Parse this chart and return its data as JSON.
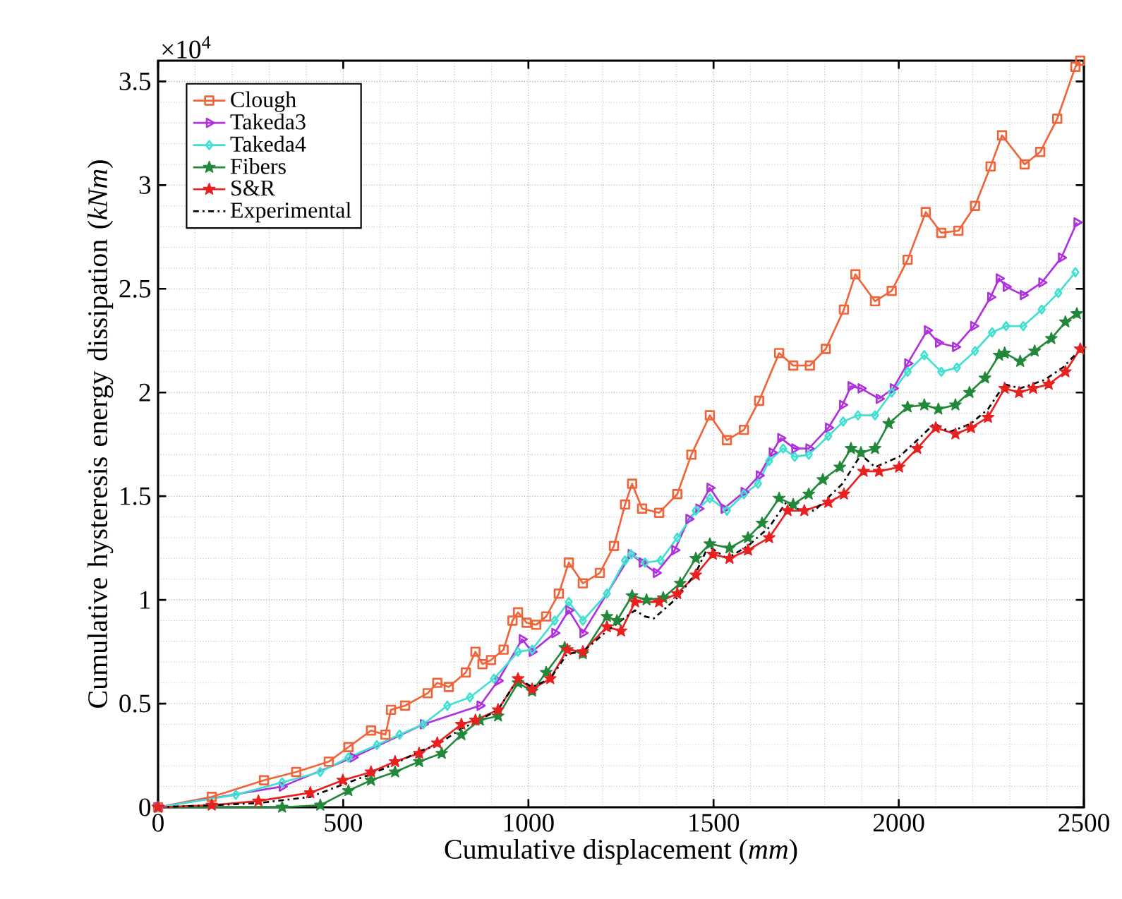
{
  "chart_data": {
    "type": "line",
    "xlabel": "Cumulative displacement (*mm*)",
    "ylabel": "Cumulative hysteresis energy dissipation (*kNm*)",
    "annotations": [
      "×10$^{4}$"
    ],
    "xlim": [
      0,
      2500
    ],
    "ylim": [
      0,
      3.6
    ],
    "xticks": [
      0,
      500,
      1000,
      1500,
      2000,
      2500
    ],
    "yticks": [
      0,
      0.5,
      1,
      1.5,
      2,
      2.5,
      3,
      3.5
    ],
    "grid": true,
    "legend": "top left",
    "series": [
      {
        "name": "Clough",
        "color": "#f0643a",
        "marker": "square",
        "line_style": "solid",
        "x": [
          0,
          145,
          286,
          373,
          461,
          514,
          575,
          614,
          629,
          667,
          728,
          754,
          785,
          831,
          857,
          876,
          899,
          933,
          957,
          972,
          995,
          1021,
          1048,
          1082,
          1109,
          1147,
          1193,
          1231,
          1261,
          1280,
          1307,
          1353,
          1402,
          1440,
          1490,
          1536,
          1582,
          1623,
          1677,
          1715,
          1760,
          1803,
          1852,
          1883,
          1936,
          1981,
          2024,
          2073,
          2115,
          2161,
          2206,
          2248,
          2279,
          2340,
          2382,
          2428,
          2477,
          2490
        ],
        "values": [
          0,
          0.05,
          0.13,
          0.17,
          0.22,
          0.29,
          0.37,
          0.35,
          0.47,
          0.49,
          0.55,
          0.6,
          0.58,
          0.65,
          0.75,
          0.69,
          0.71,
          0.76,
          0.9,
          0.94,
          0.89,
          0.88,
          0.92,
          1.03,
          1.18,
          1.08,
          1.13,
          1.26,
          1.46,
          1.56,
          1.44,
          1.42,
          1.51,
          1.7,
          1.89,
          1.77,
          1.82,
          1.96,
          2.19,
          2.13,
          2.13,
          2.21,
          2.4,
          2.57,
          2.44,
          2.49,
          2.64,
          2.87,
          2.77,
          2.78,
          2.9,
          3.09,
          3.24,
          3.1,
          3.16,
          3.32,
          3.57,
          3.6
        ]
      },
      {
        "name": "Takeda3",
        "color": "#b030e0",
        "marker": "triangle",
        "line_style": "solid",
        "x": [
          0,
          335,
          526,
          716,
          869,
          918,
          983,
          1010,
          1071,
          1109,
          1147,
          1277,
          1307,
          1345,
          1395,
          1433,
          1460,
          1490,
          1528,
          1582,
          1623,
          1658,
          1681,
          1719,
          1757,
          1810,
          1848,
          1871,
          1898,
          1947,
          1985,
          2024,
          2077,
          2107,
          2153,
          2202,
          2248,
          2271,
          2290,
          2336,
          2386,
          2439,
          2481
        ],
        "values": [
          0,
          0.1,
          0.24,
          0.4,
          0.49,
          0.61,
          0.81,
          0.75,
          0.84,
          0.95,
          0.84,
          1.22,
          1.18,
          1.13,
          1.24,
          1.39,
          1.44,
          1.54,
          1.44,
          1.52,
          1.6,
          1.71,
          1.78,
          1.73,
          1.73,
          1.83,
          1.94,
          2.03,
          2.02,
          1.97,
          2.02,
          2.14,
          2.3,
          2.24,
          2.22,
          2.32,
          2.46,
          2.55,
          2.51,
          2.47,
          2.53,
          2.65,
          2.82
        ]
      },
      {
        "name": "Takeda4",
        "color": "#40e0d0",
        "marker": "diamond",
        "line_style": "solid",
        "x": [
          0,
          210,
          335,
          438,
          514,
          591,
          652,
          716,
          781,
          842,
          907,
          972,
          1010,
          1071,
          1109,
          1147,
          1212,
          1261,
          1277,
          1315,
          1357,
          1402,
          1452,
          1490,
          1536,
          1582,
          1620,
          1650,
          1688,
          1719,
          1757,
          1810,
          1850,
          1890,
          1936,
          1981,
          2024,
          2069,
          2115,
          2157,
          2206,
          2252,
          2290,
          2336,
          2386,
          2431,
          2477
        ],
        "values": [
          0,
          0.06,
          0.12,
          0.17,
          0.24,
          0.3,
          0.35,
          0.4,
          0.49,
          0.53,
          0.62,
          0.75,
          0.76,
          0.9,
          0.99,
          0.9,
          1.03,
          1.19,
          1.22,
          1.18,
          1.19,
          1.3,
          1.43,
          1.49,
          1.43,
          1.51,
          1.56,
          1.67,
          1.73,
          1.69,
          1.7,
          1.79,
          1.86,
          1.89,
          1.89,
          2.0,
          2.1,
          2.18,
          2.1,
          2.12,
          2.2,
          2.29,
          2.32,
          2.32,
          2.4,
          2.48,
          2.58
        ]
      },
      {
        "name": "Fibers",
        "color": "#22883a",
        "marker": "star",
        "line_style": "solid",
        "x": [
          0,
          335,
          438,
          514,
          575,
          640,
          705,
          766,
          819,
          869,
          918,
          972,
          1010,
          1048,
          1098,
          1147,
          1212,
          1239,
          1280,
          1319,
          1364,
          1410,
          1452,
          1490,
          1543,
          1593,
          1631,
          1677,
          1715,
          1757,
          1795,
          1841,
          1871,
          1898,
          1936,
          1973,
          2024,
          2069,
          2107,
          2153,
          2191,
          2233,
          2271,
          2286,
          2328,
          2367,
          2412,
          2450,
          2481
        ],
        "values": [
          0,
          0,
          0.01,
          0.08,
          0.13,
          0.17,
          0.22,
          0.26,
          0.35,
          0.42,
          0.44,
          0.6,
          0.56,
          0.65,
          0.77,
          0.74,
          0.92,
          0.9,
          1.02,
          1.0,
          1.01,
          1.08,
          1.2,
          1.27,
          1.25,
          1.3,
          1.37,
          1.49,
          1.46,
          1.51,
          1.58,
          1.64,
          1.73,
          1.71,
          1.73,
          1.85,
          1.93,
          1.94,
          1.92,
          1.94,
          2.0,
          2.07,
          2.18,
          2.19,
          2.15,
          2.2,
          2.26,
          2.34,
          2.38
        ]
      },
      {
        "name": "S&R",
        "color": "#e82020",
        "marker": "star",
        "line_style": "solid",
        "x": [
          0,
          145,
          271,
          411,
          499,
          575,
          640,
          705,
          754,
          819,
          857,
          918,
          972,
          1010,
          1059,
          1105,
          1147,
          1212,
          1250,
          1288,
          1353,
          1402,
          1452,
          1498,
          1543,
          1593,
          1650,
          1700,
          1745,
          1810,
          1852,
          1905,
          1947,
          2001,
          2050,
          2100,
          2153,
          2195,
          2241,
          2286,
          2325,
          2363,
          2405,
          2450,
          2490
        ],
        "values": [
          0,
          0.01,
          0.03,
          0.07,
          0.13,
          0.17,
          0.22,
          0.26,
          0.31,
          0.4,
          0.42,
          0.47,
          0.62,
          0.57,
          0.62,
          0.76,
          0.75,
          0.87,
          0.85,
          0.99,
          0.99,
          1.03,
          1.12,
          1.22,
          1.2,
          1.24,
          1.3,
          1.43,
          1.43,
          1.47,
          1.51,
          1.62,
          1.62,
          1.64,
          1.73,
          1.83,
          1.8,
          1.83,
          1.88,
          2.02,
          2.0,
          2.02,
          2.04,
          2.1,
          2.21
        ]
      },
      {
        "name": "Experimental",
        "color": "#000000",
        "marker": "none",
        "line_style": "dashed",
        "x": [
          0,
          145,
          271,
          411,
          499,
          575,
          640,
          705,
          754,
          819,
          857,
          918,
          972,
          1010,
          1059,
          1105,
          1147,
          1212,
          1250,
          1288,
          1315,
          1338,
          1402,
          1452,
          1486,
          1536,
          1593,
          1650,
          1696,
          1719,
          1772,
          1848,
          1898,
          1936,
          2001,
          2050,
          2096,
          2138,
          2195,
          2241,
          2286,
          2328,
          2393,
          2443,
          2481
        ],
        "values": [
          0,
          0.01,
          0.02,
          0.05,
          0.11,
          0.16,
          0.21,
          0.27,
          0.3,
          0.38,
          0.41,
          0.47,
          0.62,
          0.58,
          0.62,
          0.74,
          0.75,
          0.85,
          0.9,
          0.95,
          0.92,
          0.91,
          1.01,
          1.13,
          1.26,
          1.2,
          1.26,
          1.35,
          1.47,
          1.44,
          1.43,
          1.56,
          1.7,
          1.64,
          1.69,
          1.77,
          1.85,
          1.81,
          1.85,
          1.92,
          2.04,
          2.02,
          2.06,
          2.12,
          2.19
        ]
      }
    ]
  }
}
